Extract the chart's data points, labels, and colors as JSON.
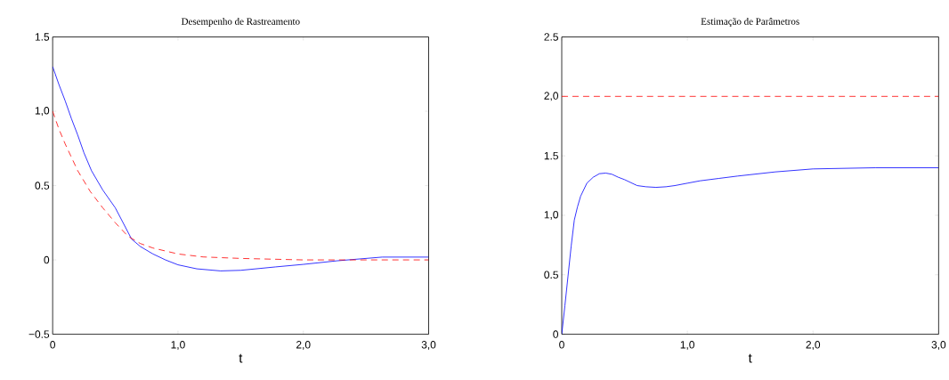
{
  "chart_data": [
    {
      "type": "line",
      "title": "Desempenho de Rastreamento",
      "xlabel": "t",
      "xlim": [
        0,
        3
      ],
      "ylim": [
        -0.5,
        1.5
      ],
      "xticks": [
        0,
        {
          "value": 1,
          "label": "1,0"
        },
        {
          "value": 2,
          "label": "2,0"
        },
        {
          "value": 3,
          "label": "3,0"
        }
      ],
      "yticks": [
        {
          "value": -0.5,
          "label": "−0.5"
        },
        0,
        0.5,
        {
          "value": 1,
          "label": "1,0"
        },
        1.5
      ],
      "series": [
        {
          "color": "#0000ff",
          "line_style": "solid",
          "x": [
            0,
            0.05,
            0.1,
            0.15,
            0.2,
            0.25,
            0.31,
            0.4,
            0.5,
            0.63,
            0.7,
            0.8,
            0.9,
            1.0,
            1.15,
            1.34,
            1.5,
            1.78,
            2.0,
            2.27,
            2.63,
            3.0
          ],
          "values": [
            1.3,
            1.18,
            1.07,
            0.95,
            0.84,
            0.72,
            0.6,
            0.47,
            0.35,
            0.14,
            0.09,
            0.04,
            0.0,
            -0.033,
            -0.06,
            -0.074,
            -0.07,
            -0.047,
            -0.03,
            -0.006,
            0.019,
            0.019
          ]
        },
        {
          "color": "#ff0000",
          "line_style": "dashed",
          "x": [
            0,
            0.05,
            0.1,
            0.2,
            0.3,
            0.4,
            0.5,
            0.6,
            0.7,
            0.8,
            1.0,
            1.2,
            1.5,
            2.0,
            2.5,
            3.0
          ],
          "values": [
            1.0,
            0.88,
            0.78,
            0.6,
            0.46,
            0.35,
            0.25,
            0.16,
            0.11,
            0.08,
            0.04,
            0.02,
            0.01,
            0.0,
            0.0,
            0.0
          ]
        }
      ]
    },
    {
      "type": "line",
      "title": "Estimação de Parâmetros",
      "xlabel": "t",
      "xlim": [
        0,
        3
      ],
      "ylim": [
        0,
        2.5
      ],
      "xticks": [
        0,
        {
          "value": 1,
          "label": "1,0"
        },
        {
          "value": 2,
          "label": "2,0"
        },
        {
          "value": 3,
          "label": "3,0"
        }
      ],
      "yticks": [
        0,
        0.5,
        {
          "value": 1,
          "label": "1,0"
        },
        1.5,
        {
          "value": 2,
          "label": "2,0"
        },
        2.5
      ],
      "series": [
        {
          "color": "#0000ff",
          "line_style": "solid",
          "x": [
            0,
            0.025,
            0.05,
            0.075,
            0.1,
            0.125,
            0.15,
            0.2,
            0.25,
            0.3,
            0.35,
            0.4,
            0.45,
            0.5,
            0.6,
            0.67,
            0.75,
            0.83,
            0.9,
            1.0,
            1.1,
            1.25,
            1.4,
            1.7,
            2.0,
            2.5,
            3.0
          ],
          "values": [
            0,
            0.24,
            0.49,
            0.74,
            0.96,
            1.07,
            1.16,
            1.27,
            1.32,
            1.35,
            1.355,
            1.345,
            1.32,
            1.3,
            1.25,
            1.24,
            1.235,
            1.24,
            1.25,
            1.27,
            1.29,
            1.31,
            1.33,
            1.365,
            1.39,
            1.4,
            1.4
          ]
        },
        {
          "color": "#ff0000",
          "line_style": "dashed",
          "x": [
            0,
            3
          ],
          "values": [
            2.0,
            2.0
          ]
        }
      ]
    }
  ]
}
